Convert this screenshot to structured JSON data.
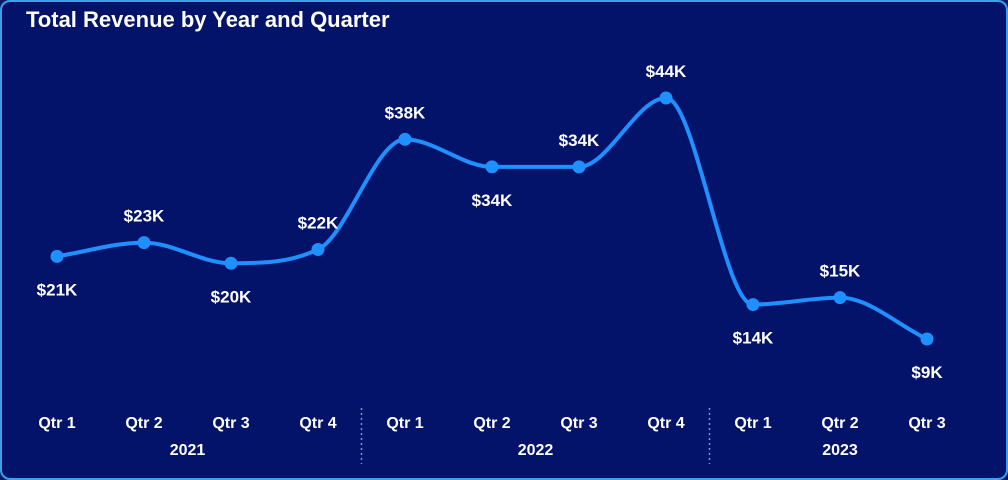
{
  "chart_data": {
    "type": "line",
    "title": "Total Revenue by Year and Quarter",
    "categories": [
      "Qtr 1",
      "Qtr 2",
      "Qtr 3",
      "Qtr 4",
      "Qtr 1",
      "Qtr 2",
      "Qtr 3",
      "Qtr 4",
      "Qtr 1",
      "Qtr 2",
      "Qtr 3"
    ],
    "years": [
      {
        "label": "2021",
        "start": 0,
        "end": 3
      },
      {
        "label": "2022",
        "start": 4,
        "end": 7
      },
      {
        "label": "2023",
        "start": 8,
        "end": 10
      }
    ],
    "values": [
      21,
      23,
      20,
      22,
      38,
      34,
      34,
      44,
      14,
      15,
      9
    ],
    "data_labels": [
      "$21K",
      "$23K",
      "$20K",
      "$22K",
      "$38K",
      "$34K",
      "$34K",
      "$44K",
      "$14K",
      "$15K",
      "$9K"
    ],
    "label_position": [
      "below",
      "above",
      "below",
      "above",
      "above",
      "below",
      "above",
      "above",
      "below",
      "above",
      "below"
    ],
    "unit": "thousands of USD",
    "line_color": "#1e90ff",
    "background_color": "#04136a",
    "text_color": "#ffffff",
    "grid": false,
    "legend": "none"
  }
}
